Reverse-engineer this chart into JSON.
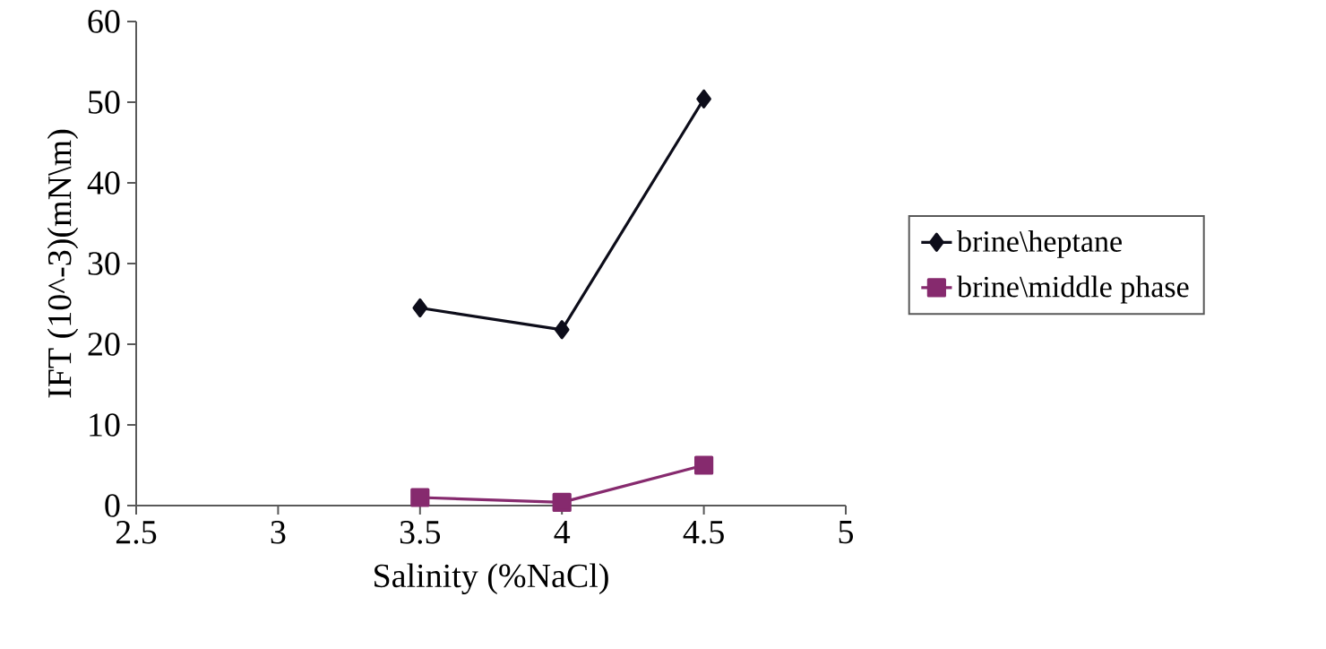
{
  "chart_data": {
    "type": "line",
    "xlabel": "Salinity (%NaCl)",
    "ylabel": "IFT (10^-3)(mN\\m)",
    "xlim": [
      2.5,
      5
    ],
    "xticks": [
      2.5,
      3,
      3.5,
      4,
      4.5,
      5
    ],
    "ylim": [
      0,
      60
    ],
    "yticks": [
      0,
      10,
      20,
      30,
      40,
      50,
      60
    ],
    "x": [
      3.5,
      4,
      4.5
    ],
    "series": [
      {
        "name": "brine\\heptane",
        "color": "#0d0d1a",
        "marker": "diamond",
        "values": [
          24.5,
          21.8,
          50.4
        ]
      },
      {
        "name": "brine\\middle phase",
        "color": "#862a6e",
        "marker": "square",
        "values": [
          1.0,
          0.4,
          5.0
        ]
      }
    ],
    "legend": "right",
    "line_style": "solid"
  }
}
